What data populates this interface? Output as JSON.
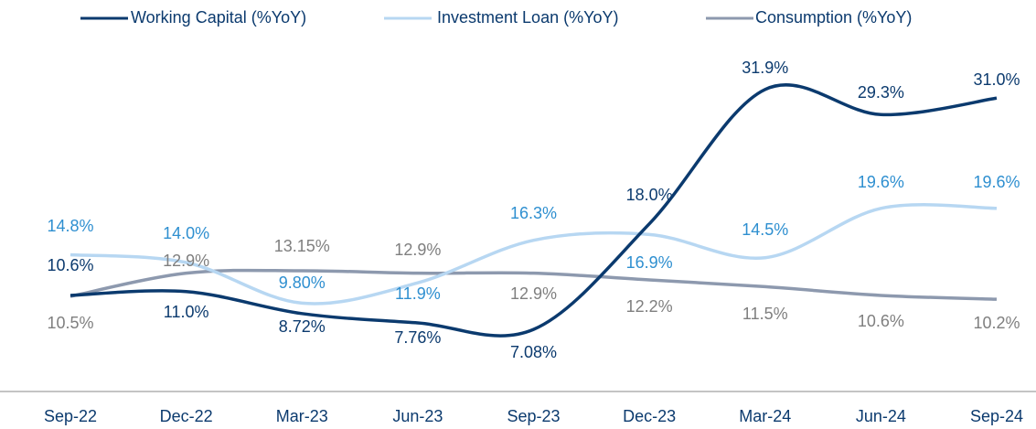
{
  "chart_data": {
    "type": "line",
    "categories": [
      "Sep-22",
      "Dec-22",
      "Mar-23",
      "Jun-23",
      "Sep-23",
      "Dec-23",
      "Mar-24",
      "Jun-24",
      "Sep-24"
    ],
    "series": [
      {
        "name": "Working Capital (%YoY)",
        "color": "#0b3a6e",
        "label_color": "#0b3a6e",
        "values": [
          10.6,
          11.0,
          8.72,
          7.76,
          7.08,
          18.0,
          31.9,
          29.3,
          31.0
        ],
        "value_labels": [
          "10.6%",
          "11.0%",
          "8.72%",
          "7.76%",
          "7.08%",
          "18.0%",
          "31.9%",
          "29.3%",
          "31.0%"
        ]
      },
      {
        "name": "Investment Loan (%YoY)",
        "color": "#b7d7f2",
        "label_color": "#2e8fd0",
        "values": [
          14.8,
          14.0,
          9.8,
          11.9,
          16.3,
          16.9,
          14.5,
          19.6,
          19.6
        ],
        "value_labels": [
          "14.8%",
          "14.0%",
          "9.80%",
          "11.9%",
          "16.3%",
          "16.9%",
          "14.5%",
          "19.6%",
          "19.6%"
        ]
      },
      {
        "name": "Consumption (%YoY)",
        "color": "#8d99ae",
        "label_color": "#7f7f7f",
        "values": [
          10.5,
          12.9,
          13.15,
          12.9,
          12.9,
          12.2,
          11.5,
          10.6,
          10.2
        ],
        "value_labels": [
          "10.5%",
          "12.9%",
          "13.15%",
          "12.9%",
          "12.9%",
          "12.2%",
          "11.5%",
          "10.6%",
          "10.2%"
        ]
      }
    ],
    "ylim": [
      0,
      35
    ],
    "smooth": true,
    "legend": "top"
  }
}
